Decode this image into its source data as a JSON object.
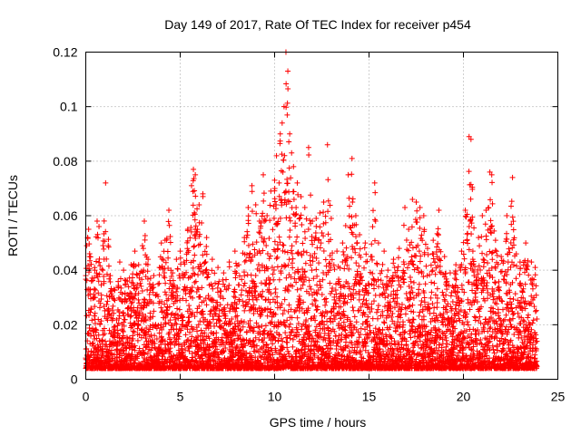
{
  "chart_data": {
    "type": "scatter",
    "title": "Day 149 of 2017, Rate Of TEC Index for receiver p454",
    "xlabel": "GPS time / hours",
    "ylabel": "ROTI / TECUs",
    "xlim": [
      0,
      25
    ],
    "ylim": [
      0,
      0.12
    ],
    "grid": true,
    "xticks": [
      0,
      5,
      10,
      15,
      20,
      25
    ],
    "yticks": [
      0,
      0.02,
      0.04,
      0.06,
      0.08,
      0.1,
      0.12
    ],
    "marker": "+",
    "color": "#ff0000",
    "series": [
      {
        "name": "ROTI",
        "points": [
          [
            0.05,
            0.049
          ],
          [
            0.1,
            0.052
          ],
          [
            0.15,
            0.055
          ],
          [
            0.2,
            0.045
          ],
          [
            0.3,
            0.036
          ],
          [
            0.5,
            0.03
          ],
          [
            0.6,
            0.058
          ],
          [
            0.7,
            0.056
          ],
          [
            0.9,
            0.04
          ],
          [
            1.05,
            0.072
          ],
          [
            1.2,
            0.025
          ],
          [
            1.5,
            0.033
          ],
          [
            1.8,
            0.043
          ],
          [
            2.0,
            0.04
          ],
          [
            2.2,
            0.036
          ],
          [
            2.4,
            0.042
          ],
          [
            2.6,
            0.047
          ],
          [
            2.8,
            0.042
          ],
          [
            3.0,
            0.049
          ],
          [
            3.1,
            0.058
          ],
          [
            3.3,
            0.044
          ],
          [
            3.6,
            0.038
          ],
          [
            3.9,
            0.041
          ],
          [
            4.0,
            0.05
          ],
          [
            4.2,
            0.051
          ],
          [
            4.4,
            0.062
          ],
          [
            4.6,
            0.039
          ],
          [
            4.8,
            0.044
          ],
          [
            5.0,
            0.047
          ],
          [
            5.2,
            0.043
          ],
          [
            5.4,
            0.055
          ],
          [
            5.6,
            0.071
          ],
          [
            5.7,
            0.077
          ],
          [
            5.8,
            0.075
          ],
          [
            6.0,
            0.064
          ],
          [
            6.2,
            0.068
          ],
          [
            6.4,
            0.052
          ],
          [
            6.7,
            0.044
          ],
          [
            7.0,
            0.041
          ],
          [
            7.3,
            0.039
          ],
          [
            7.6,
            0.043
          ],
          [
            7.9,
            0.047
          ],
          [
            8.1,
            0.042
          ],
          [
            8.4,
            0.052
          ],
          [
            8.6,
            0.063
          ],
          [
            8.8,
            0.071
          ],
          [
            9.0,
            0.064
          ],
          [
            9.2,
            0.058
          ],
          [
            9.4,
            0.075
          ],
          [
            9.6,
            0.06
          ],
          [
            9.8,
            0.069
          ],
          [
            10.0,
            0.073
          ],
          [
            10.1,
            0.082
          ],
          [
            10.3,
            0.09
          ],
          [
            10.4,
            0.094
          ],
          [
            10.5,
            0.1
          ],
          [
            10.6,
            0.12
          ],
          [
            10.7,
            0.113
          ],
          [
            10.8,
            0.09
          ],
          [
            10.9,
            0.083
          ],
          [
            11.0,
            0.078
          ],
          [
            11.2,
            0.072
          ],
          [
            11.4,
            0.067
          ],
          [
            11.6,
            0.063
          ],
          [
            11.8,
            0.085
          ],
          [
            12.0,
            0.058
          ],
          [
            12.2,
            0.059
          ],
          [
            12.4,
            0.061
          ],
          [
            12.6,
            0.065
          ],
          [
            12.8,
            0.086
          ],
          [
            13.0,
            0.059
          ],
          [
            13.3,
            0.047
          ],
          [
            13.6,
            0.05
          ],
          [
            13.9,
            0.075
          ],
          [
            14.1,
            0.081
          ],
          [
            14.3,
            0.06
          ],
          [
            14.5,
            0.053
          ],
          [
            14.8,
            0.05
          ],
          [
            15.1,
            0.045
          ],
          [
            15.3,
            0.072
          ],
          [
            15.5,
            0.05
          ],
          [
            15.8,
            0.047
          ],
          [
            16.0,
            0.04
          ],
          [
            16.3,
            0.044
          ],
          [
            16.6,
            0.048
          ],
          [
            16.9,
            0.063
          ],
          [
            17.1,
            0.055
          ],
          [
            17.3,
            0.066
          ],
          [
            17.5,
            0.065
          ],
          [
            17.7,
            0.063
          ],
          [
            17.9,
            0.06
          ],
          [
            18.1,
            0.048
          ],
          [
            18.4,
            0.051
          ],
          [
            18.7,
            0.062
          ],
          [
            19.0,
            0.045
          ],
          [
            19.3,
            0.039
          ],
          [
            19.6,
            0.042
          ],
          [
            19.9,
            0.047
          ],
          [
            20.1,
            0.062
          ],
          [
            20.3,
            0.089
          ],
          [
            20.4,
            0.088
          ],
          [
            20.5,
            0.047
          ],
          [
            20.8,
            0.052
          ],
          [
            21.0,
            0.06
          ],
          [
            21.2,
            0.062
          ],
          [
            21.4,
            0.076
          ],
          [
            21.5,
            0.075
          ],
          [
            21.7,
            0.051
          ],
          [
            22.0,
            0.045
          ],
          [
            22.3,
            0.06
          ],
          [
            22.6,
            0.074
          ],
          [
            22.8,
            0.046
          ],
          [
            23.0,
            0.043
          ],
          [
            23.3,
            0.05
          ],
          [
            23.6,
            0.043
          ],
          [
            23.8,
            0.041
          ]
        ]
      }
    ]
  }
}
